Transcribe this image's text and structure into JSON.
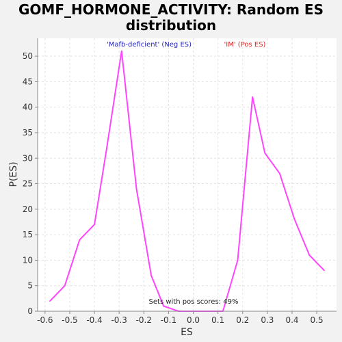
{
  "chart_data": {
    "type": "line",
    "title_lines": [
      "GOMF_HORMONE_ACTIVITY: Random ES",
      "distribution"
    ],
    "xlabel": "ES",
    "ylabel": "P(ES)",
    "xlim": [
      -0.63,
      0.58
    ],
    "ylim": [
      0,
      53.5
    ],
    "x_ticks": [
      -0.6,
      -0.5,
      -0.4,
      -0.3,
      -0.2,
      -0.1,
      0.0,
      0.1,
      0.2,
      0.3,
      0.4,
      0.5
    ],
    "x_tick_labels": [
      "-0.6",
      "-0.5",
      "-0.4",
      "-0.3",
      "-0.2",
      "-0.1",
      "0.0",
      "0.1",
      "0.2",
      "0.3",
      "0.4",
      "0.5"
    ],
    "y_ticks": [
      0,
      5,
      10,
      15,
      20,
      25,
      30,
      35,
      40,
      45,
      50
    ],
    "y_tick_labels": [
      "0",
      "5",
      "10",
      "15",
      "20",
      "25",
      "30",
      "35",
      "40",
      "45",
      "50"
    ],
    "grid": true,
    "line_color": "#ff44ff",
    "series": [
      {
        "x": [
          -0.58,
          -0.52,
          -0.46,
          -0.4,
          -0.35,
          -0.29,
          -0.23,
          -0.17,
          -0.12,
          -0.06,
          0.0,
          0.06,
          0.12,
          0.18,
          0.24,
          0.29,
          0.35,
          0.41,
          0.47,
          0.53
        ],
        "y": [
          2,
          5,
          14,
          17,
          32,
          51,
          24,
          7,
          1,
          0,
          0,
          0,
          0,
          10,
          42,
          31,
          27,
          18,
          11,
          8
        ]
      }
    ],
    "legend": [
      {
        "label": "'Mafb-deficient' (Neg ES)",
        "color": "#2222bb"
      },
      {
        "label": "'IM' (Pos ES)",
        "color": "#dd2222"
      }
    ],
    "annotation": "Sets with pos scores: 49%"
  }
}
